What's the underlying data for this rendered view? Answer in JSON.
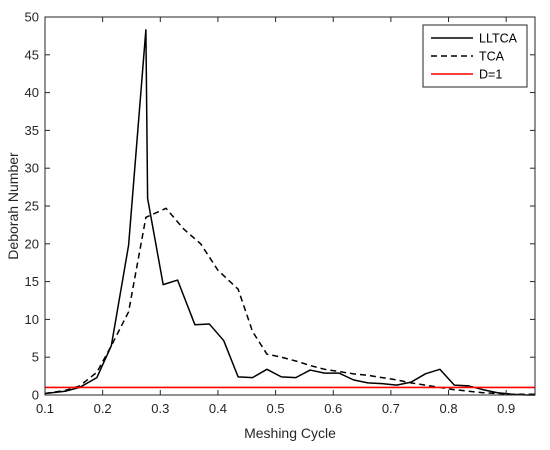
{
  "chart_data": {
    "type": "line",
    "title": "",
    "xlabel": "Meshing Cycle",
    "ylabel": "Deborah Number",
    "xlim": [
      0.1,
      0.95
    ],
    "ylim": [
      0,
      50
    ],
    "xticks": [
      "0.1",
      "0.2",
      "0.3",
      "0.4",
      "0.5",
      "0.6",
      "0.7",
      "0.8",
      "0.9"
    ],
    "yticks": [
      "0",
      "5",
      "10",
      "15",
      "20",
      "25",
      "30",
      "35",
      "40",
      "45",
      "50"
    ],
    "grid": false,
    "legend_position": "top-right",
    "series": [
      {
        "name": "LLTCA",
        "color": "#000000",
        "dash": "solid",
        "x": [
          0.1,
          0.135,
          0.16,
          0.19,
          0.215,
          0.245,
          0.275,
          0.278,
          0.305,
          0.33,
          0.36,
          0.385,
          0.41,
          0.435,
          0.46,
          0.485,
          0.51,
          0.535,
          0.56,
          0.585,
          0.61,
          0.635,
          0.66,
          0.685,
          0.71,
          0.735,
          0.76,
          0.785,
          0.81,
          0.835,
          0.86,
          0.885,
          0.91,
          0.935,
          0.95
        ],
        "y": [
          0.2,
          0.5,
          1.0,
          2.3,
          6.5,
          19.8,
          48.3,
          26.0,
          14.6,
          15.2,
          9.3,
          9.4,
          7.2,
          2.4,
          2.3,
          3.4,
          2.4,
          2.3,
          3.3,
          2.9,
          2.9,
          2.0,
          1.6,
          1.5,
          1.3,
          1.7,
          2.8,
          3.4,
          1.3,
          1.2,
          0.7,
          0.3,
          0.1,
          0.0,
          0.0
        ]
      },
      {
        "name": "TCA",
        "color": "#000000",
        "dash": "dashed",
        "x": [
          0.1,
          0.135,
          0.16,
          0.19,
          0.215,
          0.245,
          0.275,
          0.31,
          0.34,
          0.37,
          0.4,
          0.435,
          0.46,
          0.485,
          0.51,
          0.535,
          0.56,
          0.585,
          0.61,
          0.635,
          0.66,
          0.685,
          0.71,
          0.735,
          0.76,
          0.785,
          0.81,
          0.835,
          0.86,
          0.885,
          0.91,
          0.935,
          0.95
        ],
        "y": [
          0.2,
          0.6,
          1.2,
          3.0,
          6.5,
          11.0,
          23.5,
          24.7,
          22.0,
          20.0,
          16.5,
          14.0,
          8.4,
          5.4,
          5.0,
          4.5,
          3.9,
          3.4,
          3.1,
          2.8,
          2.6,
          2.3,
          2.0,
          1.6,
          1.3,
          1.0,
          0.7,
          0.5,
          0.3,
          0.2,
          0.1,
          0.1,
          0.1
        ]
      },
      {
        "name": "D=1",
        "color": "#ff0000",
        "dash": "solid",
        "x": [
          0.1,
          0.95
        ],
        "y": [
          1,
          1
        ]
      }
    ]
  }
}
